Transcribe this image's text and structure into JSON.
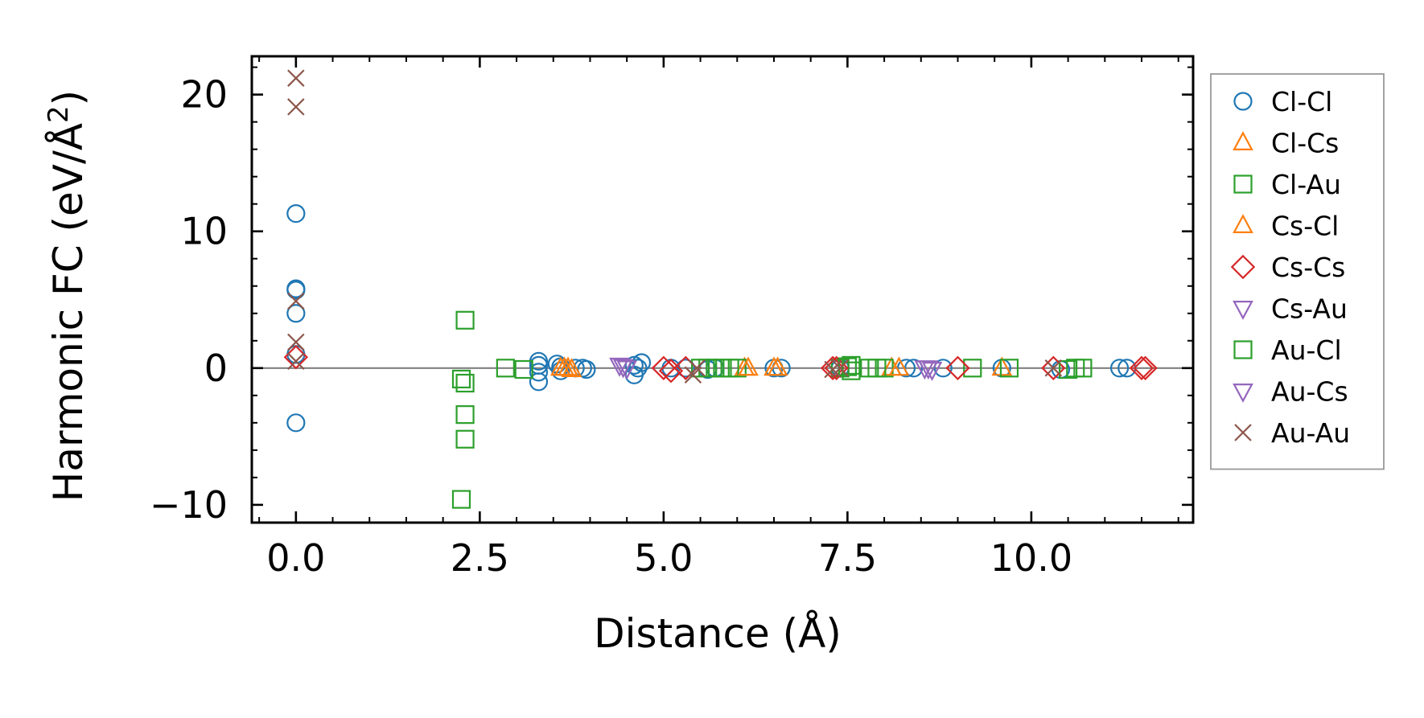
{
  "chart_data": {
    "type": "scatter",
    "title": "",
    "xlabel": "Distance (Å)",
    "ylabel_main": "Harmonic FC (eV/Å",
    "ylabel_sup": "2",
    "ylabel_close": ")",
    "xlim": [
      -0.6,
      12.2
    ],
    "ylim": [
      -11.3,
      22.8
    ],
    "xticks": [
      0.0,
      2.5,
      5.0,
      7.5,
      10.0
    ],
    "xtick_labels": [
      "0.0",
      "2.5",
      "5.0",
      "7.5",
      "10.0"
    ],
    "yticks": [
      -10,
      0,
      10,
      20
    ],
    "ytick_labels": [
      "−10",
      "0",
      "10",
      "20"
    ],
    "x_minor_step": 0.5,
    "y_minor_step": 2,
    "zero_line": true,
    "grid": false,
    "legend_position": "outside-right",
    "series": [
      {
        "name": "Cl-Cl",
        "marker": "circle",
        "color": "#1f77b4",
        "points": [
          [
            0,
            11.3
          ],
          [
            0,
            5.8
          ],
          [
            0,
            5.7
          ],
          [
            0,
            4.0
          ],
          [
            0,
            1.0
          ],
          [
            0,
            -4.0
          ],
          [
            3.3,
            0.5
          ],
          [
            3.3,
            0.2
          ],
          [
            3.3,
            -0.3
          ],
          [
            3.3,
            -1.0
          ],
          [
            3.55,
            0.3
          ],
          [
            3.6,
            0.1
          ],
          [
            3.6,
            -0.2
          ],
          [
            3.8,
            0.0
          ],
          [
            3.9,
            0.0
          ],
          [
            3.95,
            -0.1
          ],
          [
            4.6,
            0.2
          ],
          [
            4.6,
            -0.5
          ],
          [
            4.65,
            0.0
          ],
          [
            4.7,
            0.4
          ],
          [
            5.1,
            0.0
          ],
          [
            5.3,
            0.0
          ],
          [
            5.6,
            -0.1
          ],
          [
            5.7,
            0.0
          ],
          [
            6.5,
            0.0
          ],
          [
            6.6,
            0.0
          ],
          [
            7.4,
            0.0
          ],
          [
            8.3,
            0.0
          ],
          [
            8.4,
            0.0
          ],
          [
            8.8,
            0.0
          ],
          [
            9.6,
            0.0
          ],
          [
            10.4,
            -0.1
          ],
          [
            11.2,
            0.0
          ],
          [
            11.3,
            0.0
          ]
        ]
      },
      {
        "name": "Cl-Cs",
        "marker": "triangle-up",
        "color": "#ff7f0e",
        "points": [
          [
            3.6,
            0.0
          ],
          [
            3.7,
            0.0
          ],
          [
            3.75,
            -0.1
          ],
          [
            6.1,
            0.0
          ],
          [
            6.5,
            0.0
          ],
          [
            8.1,
            0.0
          ],
          [
            9.6,
            0.0
          ]
        ]
      },
      {
        "name": "Cl-Au",
        "marker": "square",
        "color": "#2ca02c",
        "points": [
          [
            2.3,
            3.5
          ],
          [
            2.25,
            -0.8
          ],
          [
            2.3,
            -1.1
          ],
          [
            2.3,
            -3.4
          ],
          [
            2.3,
            -5.2
          ],
          [
            2.25,
            -9.6
          ],
          [
            2.85,
            0.0
          ],
          [
            3.1,
            -0.1
          ],
          [
            5.7,
            0.0
          ],
          [
            5.8,
            0.0
          ],
          [
            5.9,
            0.0
          ],
          [
            6.0,
            0.0
          ],
          [
            7.4,
            0.0
          ],
          [
            7.55,
            -0.2
          ],
          [
            7.8,
            0.0
          ],
          [
            7.9,
            0.0
          ],
          [
            8.0,
            0.0
          ],
          [
            9.2,
            0.0
          ],
          [
            9.7,
            0.0
          ],
          [
            10.6,
            0.0
          ],
          [
            10.7,
            0.0
          ]
        ]
      },
      {
        "name": "Cs-Cl",
        "marker": "triangle-up",
        "color": "#ff7f0e",
        "points": [
          [
            3.65,
            0.0
          ],
          [
            6.15,
            0.0
          ],
          [
            6.55,
            0.0
          ],
          [
            8.2,
            0.0
          ]
        ]
      },
      {
        "name": "Cs-Cs",
        "marker": "diamond",
        "color": "#d62728",
        "points": [
          [
            0,
            0.8
          ],
          [
            5.0,
            0.0
          ],
          [
            5.1,
            -0.2
          ],
          [
            5.3,
            0.0
          ],
          [
            7.3,
            0.0
          ],
          [
            7.35,
            0.0
          ],
          [
            9.0,
            0.0
          ],
          [
            10.3,
            0.0
          ],
          [
            11.5,
            0.0
          ],
          [
            11.55,
            0.0
          ]
        ]
      },
      {
        "name": "Cs-Au",
        "marker": "triangle-down",
        "color": "#9467bd",
        "points": [
          [
            4.4,
            0.2
          ],
          [
            4.5,
            0.0
          ],
          [
            8.6,
            0.0
          ],
          [
            8.65,
            -0.1
          ]
        ]
      },
      {
        "name": "Au-Cl",
        "marker": "square",
        "color": "#2ca02c",
        "points": [
          [
            5.5,
            0.0
          ],
          [
            5.6,
            0.0
          ],
          [
            7.5,
            0.1
          ],
          [
            7.55,
            0.2
          ],
          [
            10.5,
            -0.1
          ]
        ]
      },
      {
        "name": "Au-Cs",
        "marker": "triangle-down",
        "color": "#9467bd",
        "points": [
          [
            4.45,
            0.1
          ],
          [
            8.55,
            0.0
          ]
        ]
      },
      {
        "name": "Au-Au",
        "marker": "x",
        "color": "#8c564b",
        "points": [
          [
            0,
            21.2
          ],
          [
            0,
            19.1
          ],
          [
            0,
            4.9
          ],
          [
            0,
            1.9
          ],
          [
            0,
            0.5
          ],
          [
            5.4,
            -0.5
          ],
          [
            5.45,
            0.0
          ],
          [
            7.3,
            -0.1
          ],
          [
            7.4,
            0.0
          ],
          [
            10.3,
            0.0
          ]
        ]
      }
    ]
  }
}
